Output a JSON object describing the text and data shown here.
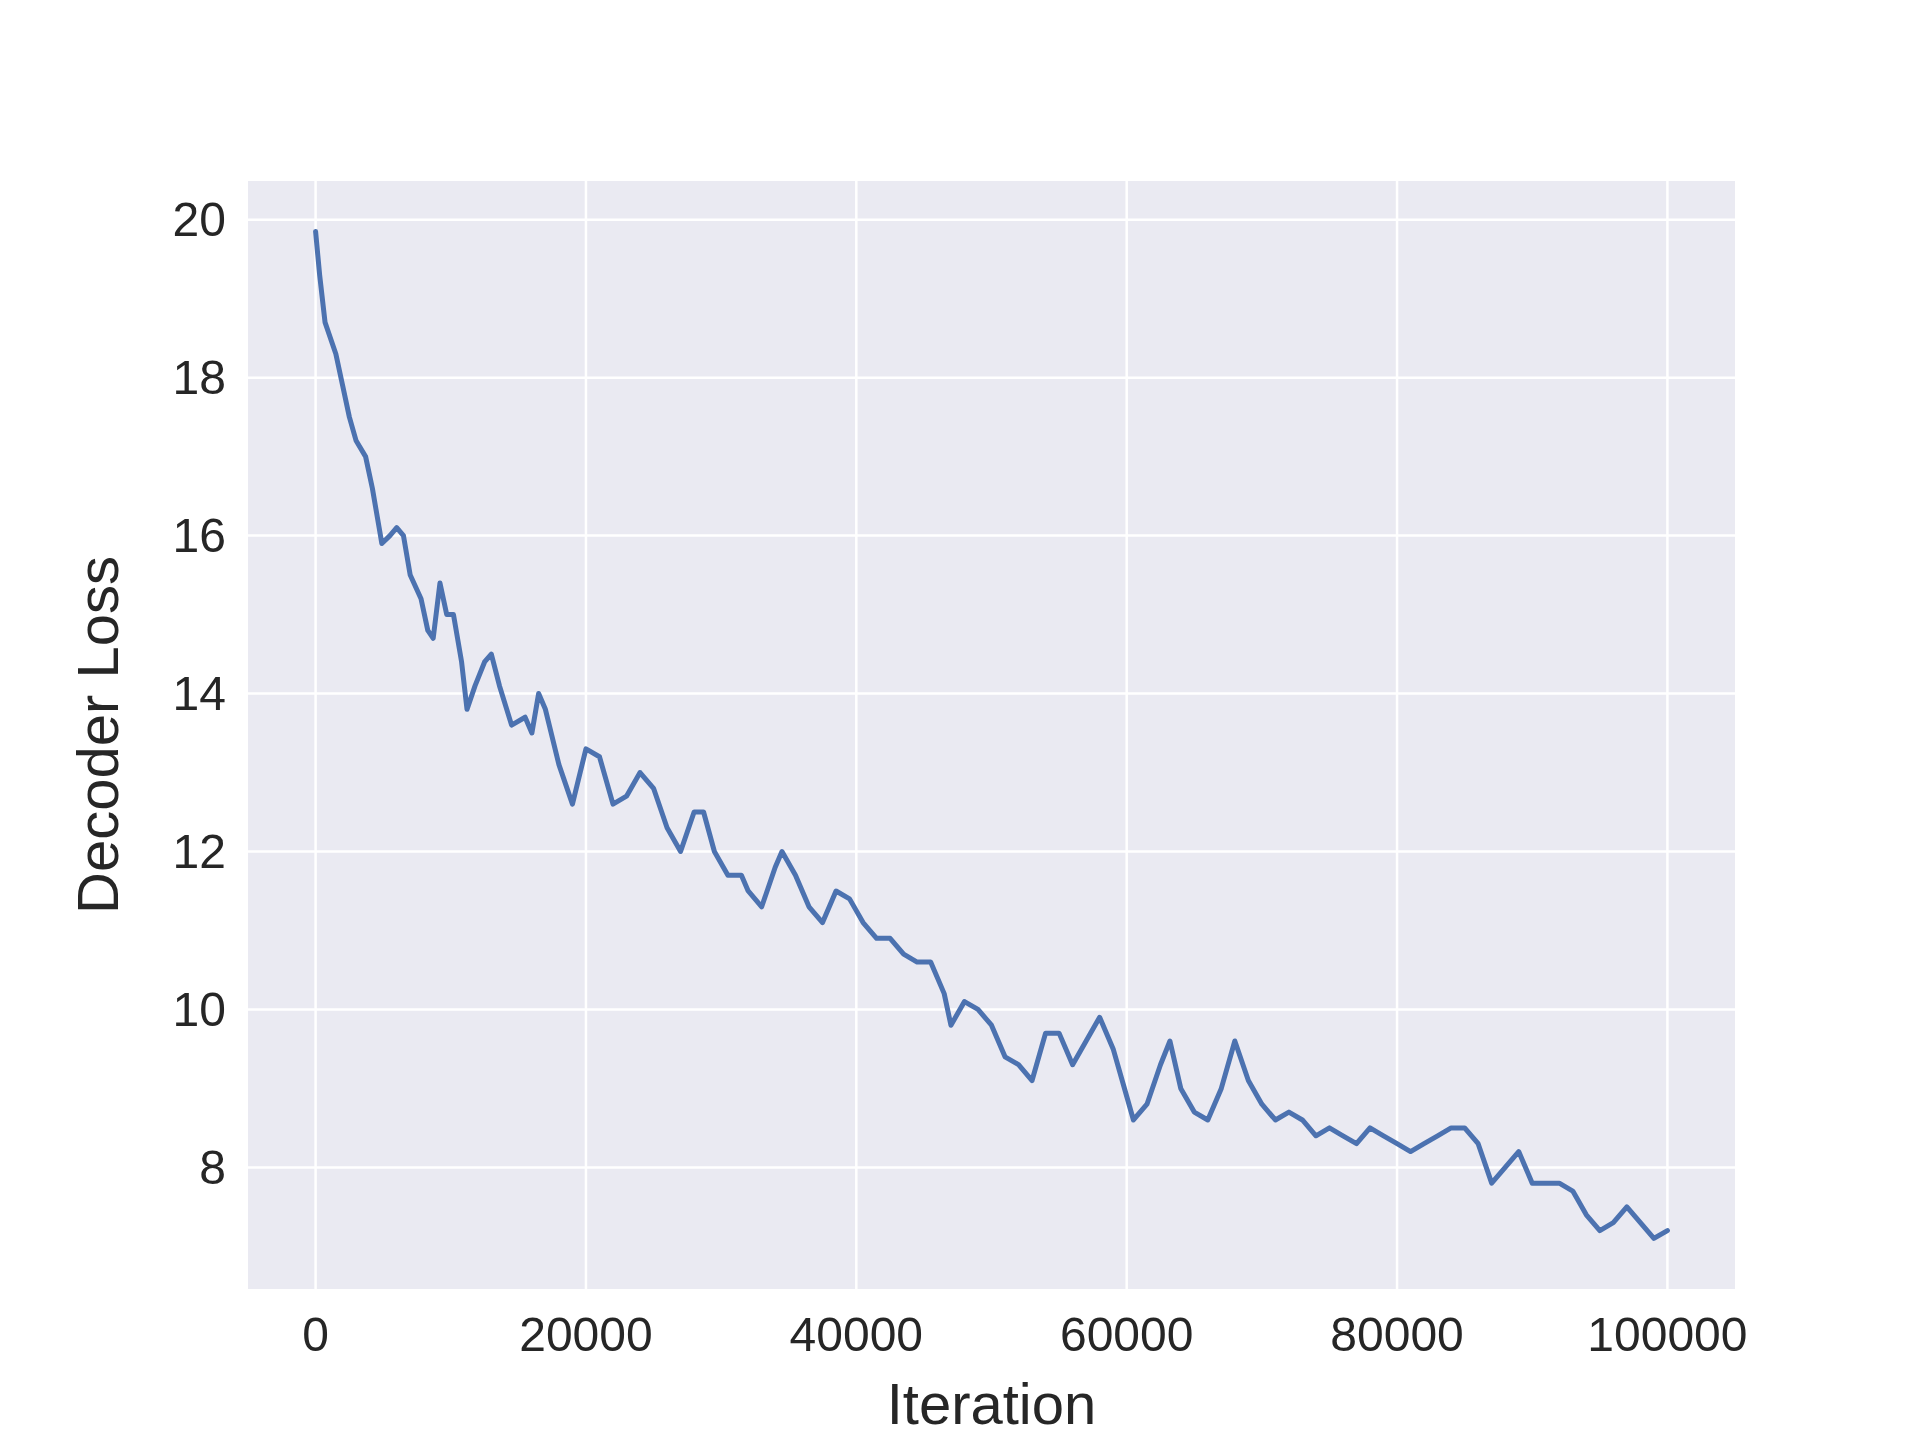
{
  "chart_data": {
    "type": "line",
    "xlabel": "Iteration",
    "ylabel": "Decoder Loss",
    "xlim": [
      -5000,
      105000
    ],
    "xticks": [
      0,
      20000,
      40000,
      60000,
      80000,
      100000
    ],
    "ylim": [
      6.46,
      20.49
    ],
    "yticks": [
      8,
      10,
      12,
      14,
      16,
      18,
      20
    ],
    "grid": true,
    "marker": "none",
    "line_style": "solid",
    "series": [
      {
        "color": "#4c72b0",
        "x": [
          0,
          300,
          700,
          1500,
          2000,
          2500,
          3000,
          3700,
          4200,
          4700,
          4900,
          5500,
          6000,
          6500,
          7000,
          7800,
          8300,
          8700,
          9200,
          9700,
          10200,
          10800,
          11200,
          11800,
          12500,
          13000,
          13600,
          14500,
          15500,
          16000,
          16500,
          17000,
          18000,
          19000,
          20000,
          21000,
          22000,
          23000,
          24000,
          25000,
          26000,
          27000,
          28000,
          28700,
          29500,
          30500,
          31500,
          32000,
          33000,
          34000,
          34500,
          35500,
          36500,
          37500,
          38500,
          39500,
          40500,
          41500,
          42500,
          43500,
          44500,
          45500,
          46500,
          47000,
          48000,
          49000,
          50000,
          51000,
          52000,
          53000,
          54000,
          55000,
          56000,
          57000,
          58000,
          59000,
          60000,
          60500,
          61500,
          62500,
          63200,
          64000,
          65000,
          66000,
          67000,
          68000,
          69000,
          70000,
          71000,
          72000,
          73000,
          74000,
          75000,
          76000,
          77000,
          78000,
          79000,
          80000,
          81000,
          82000,
          83000,
          84000,
          85000,
          86000,
          87000,
          88000,
          89000,
          90000,
          91000,
          92000,
          93000,
          94000,
          95000,
          96000,
          97000,
          98000,
          99000,
          100000
        ],
        "values": [
          19.85,
          19.3,
          18.7,
          18.3,
          17.9,
          17.5,
          17.2,
          17.0,
          16.6,
          16.1,
          15.9,
          16.0,
          16.1,
          16.0,
          15.5,
          15.2,
          14.8,
          14.7,
          15.4,
          15.0,
          15.0,
          14.4,
          13.8,
          14.1,
          14.4,
          14.5,
          14.1,
          13.6,
          13.7,
          13.5,
          14.0,
          13.8,
          13.1,
          12.6,
          13.3,
          13.2,
          12.6,
          12.7,
          13.0,
          12.8,
          12.3,
          12.0,
          12.5,
          12.5,
          12.0,
          11.7,
          11.7,
          11.5,
          11.3,
          11.8,
          12.0,
          11.7,
          11.3,
          11.1,
          11.5,
          11.4,
          11.1,
          10.9,
          10.9,
          10.7,
          10.6,
          10.6,
          10.2,
          9.8,
          10.1,
          10.0,
          9.8,
          9.4,
          9.3,
          9.1,
          9.7,
          9.7,
          9.3,
          9.6,
          9.9,
          9.5,
          8.9,
          8.6,
          8.8,
          9.3,
          9.6,
          9.0,
          8.7,
          8.6,
          9.0,
          9.6,
          9.1,
          8.8,
          8.6,
          8.7,
          8.6,
          8.4,
          8.5,
          8.4,
          8.3,
          8.5,
          8.4,
          8.3,
          8.2,
          8.3,
          8.4,
          8.5,
          8.5,
          8.3,
          7.8,
          8.0,
          8.2,
          7.8,
          7.8,
          7.8,
          7.7,
          7.4,
          7.2,
          7.3,
          7.5,
          7.3,
          7.1,
          7.2
        ]
      }
    ]
  }
}
